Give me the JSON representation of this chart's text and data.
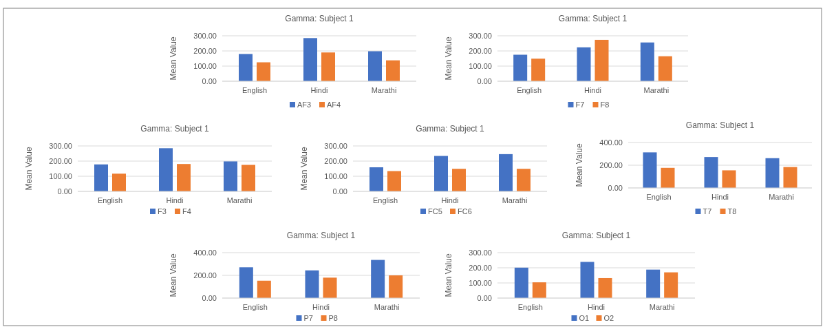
{
  "chart_data": [
    {
      "type": "bar",
      "title": "Gamma: Subject 1",
      "ylabel": "Mean Value",
      "categories": [
        "English",
        "Hindi",
        "Marathi"
      ],
      "series": [
        {
          "name": "AF3",
          "color": "#4472c4",
          "values": [
            180,
            285,
            198
          ]
        },
        {
          "name": "AF4",
          "color": "#ed7d31",
          "values": [
            125,
            190,
            138
          ]
        }
      ],
      "ylim": [
        0,
        300
      ],
      "yticks": [
        {
          "value": 0,
          "label": "0.00"
        },
        {
          "value": 100,
          "label": "100.00"
        },
        {
          "value": 200,
          "label": "200.00"
        },
        {
          "value": 300,
          "label": "300.00"
        }
      ],
      "grid": "y",
      "legend": "bottom"
    },
    {
      "type": "bar",
      "title": "Gamma: Subject 1",
      "ylabel": "Mean Value",
      "categories": [
        "English",
        "Hindi",
        "Marathi"
      ],
      "series": [
        {
          "name": "F7",
          "color": "#4472c4",
          "values": [
            175,
            224,
            256
          ]
        },
        {
          "name": "F8",
          "color": "#ed7d31",
          "values": [
            149,
            273,
            165
          ]
        }
      ],
      "ylim": [
        0,
        300
      ],
      "yticks": [
        {
          "value": 0,
          "label": "0.00"
        },
        {
          "value": 100,
          "label": "100.00"
        },
        {
          "value": 200,
          "label": "200.00"
        },
        {
          "value": 300,
          "label": "300.00"
        }
      ],
      "grid": "y",
      "legend": "bottom"
    },
    {
      "type": "bar",
      "title": "Gamma: Subject 1",
      "ylabel": "Mean Value",
      "categories": [
        "English",
        "Hindi",
        "Marathi"
      ],
      "series": [
        {
          "name": "F3",
          "color": "#4472c4",
          "values": [
            178,
            285,
            198
          ]
        },
        {
          "name": "F4",
          "color": "#ed7d31",
          "values": [
            117,
            181,
            175
          ]
        }
      ],
      "ylim": [
        0,
        300
      ],
      "yticks": [
        {
          "value": 0,
          "label": "0.00"
        },
        {
          "value": 100,
          "label": "100.00"
        },
        {
          "value": 200,
          "label": "200.00"
        },
        {
          "value": 300,
          "label": "300.00"
        }
      ],
      "grid": "y",
      "legend": "bottom"
    },
    {
      "type": "bar",
      "title": "Gamma: Subject 1",
      "ylabel": "Mean Value",
      "categories": [
        "English",
        "Hindi",
        "Marathi"
      ],
      "series": [
        {
          "name": "FC5",
          "color": "#4472c4",
          "values": [
            159,
            234,
            246
          ]
        },
        {
          "name": "FC6",
          "color": "#ed7d31",
          "values": [
            134,
            149,
            149
          ]
        }
      ],
      "ylim": [
        0,
        300
      ],
      "yticks": [
        {
          "value": 0,
          "label": "0.00"
        },
        {
          "value": 100,
          "label": "100.00"
        },
        {
          "value": 200,
          "label": "200.00"
        },
        {
          "value": 300,
          "label": "300.00"
        }
      ],
      "grid": "y",
      "legend": "bottom"
    },
    {
      "type": "bar",
      "title": "Gamma: Subject 1",
      "ylabel": "Mean Value",
      "categories": [
        "English",
        "Hindi",
        "Marathi"
      ],
      "series": [
        {
          "name": "T7",
          "color": "#4472c4",
          "values": [
            313,
            272,
            262
          ]
        },
        {
          "name": "T8",
          "color": "#ed7d31",
          "values": [
            177,
            155,
            184
          ]
        }
      ],
      "ylim": [
        0,
        400
      ],
      "yticks": [
        {
          "value": 0,
          "label": "0.00"
        },
        {
          "value": 200,
          "label": "200.00"
        },
        {
          "value": 400,
          "label": "400.00"
        }
      ],
      "grid": "y",
      "legend": "bottom"
    },
    {
      "type": "bar",
      "title": "Gamma: Subject 1",
      "ylabel": "Mean Value",
      "categories": [
        "English",
        "Hindi",
        "Marathi"
      ],
      "series": [
        {
          "name": "P7",
          "color": "#4472c4",
          "values": [
            271,
            244,
            336
          ]
        },
        {
          "name": "P8",
          "color": "#ed7d31",
          "values": [
            153,
            180,
            200
          ]
        }
      ],
      "ylim": [
        0,
        400
      ],
      "yticks": [
        {
          "value": 0,
          "label": "0.00"
        },
        {
          "value": 200,
          "label": "200.00"
        },
        {
          "value": 400,
          "label": "400.00"
        }
      ],
      "grid": "y",
      "legend": "bottom"
    },
    {
      "type": "bar",
      "title": "Gamma: Subject 1",
      "ylabel": "Mean Value",
      "categories": [
        "English",
        "Hindi",
        "Marathi"
      ],
      "series": [
        {
          "name": "O1",
          "color": "#4472c4",
          "values": [
            201,
            239,
            188
          ]
        },
        {
          "name": "O2",
          "color": "#ed7d31",
          "values": [
            104,
            132,
            170
          ]
        }
      ],
      "ylim": [
        0,
        300
      ],
      "yticks": [
        {
          "value": 0,
          "label": "0.00"
        },
        {
          "value": 100,
          "label": "100.00"
        },
        {
          "value": 200,
          "label": "200.00"
        },
        {
          "value": 300,
          "label": "300.00"
        }
      ],
      "grid": "y",
      "legend": "bottom"
    }
  ]
}
